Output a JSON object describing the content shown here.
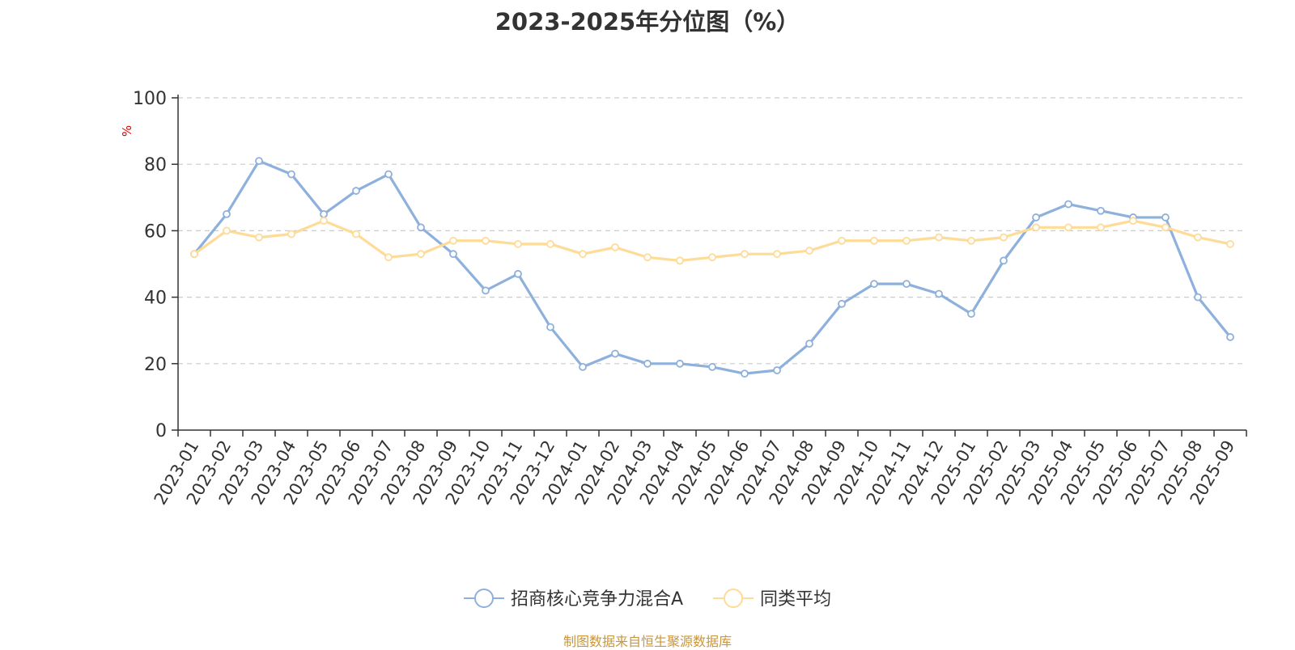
{
  "source_note": "制图数据来自恒生聚源数据库",
  "chart_data": {
    "type": "line",
    "title": "2023-2025年分位图（%）",
    "ylabel": "%",
    "xlabel": "",
    "ylim": [
      0,
      100
    ],
    "yticks": [
      0,
      20,
      40,
      60,
      80,
      100
    ],
    "grid": true,
    "legend_position": "bottom-center",
    "categories": [
      "2023-01",
      "2023-02",
      "2023-03",
      "2023-04",
      "2023-05",
      "2023-06",
      "2023-07",
      "2023-08",
      "2023-09",
      "2023-10",
      "2023-11",
      "2023-12",
      "2024-01",
      "2024-02",
      "2024-03",
      "2024-04",
      "2024-05",
      "2024-06",
      "2024-07",
      "2024-08",
      "2024-09",
      "2024-10",
      "2024-11",
      "2024-12",
      "2025-01",
      "2025-02",
      "2025-03",
      "2025-04",
      "2025-05",
      "2025-06",
      "2025-07",
      "2025-08",
      "2025-09"
    ],
    "series": [
      {
        "name": "招商核心竞争力混合A",
        "color": "#8eb0dc",
        "values": [
          53,
          65,
          81,
          77,
          65,
          72,
          77,
          61,
          53,
          42,
          47,
          31,
          19,
          23,
          20,
          20,
          19,
          17,
          18,
          26,
          38,
          44,
          44,
          41,
          35,
          51,
          64,
          68,
          66,
          64,
          64,
          40,
          28
        ]
      },
      {
        "name": "同类平均",
        "color": "#fedb96",
        "values": [
          53,
          60,
          58,
          59,
          63,
          59,
          52,
          53,
          57,
          57,
          56,
          56,
          53,
          55,
          52,
          51,
          52,
          53,
          53,
          54,
          57,
          57,
          57,
          58,
          57,
          58,
          61,
          61,
          61,
          63,
          61,
          58,
          56
        ]
      }
    ]
  }
}
